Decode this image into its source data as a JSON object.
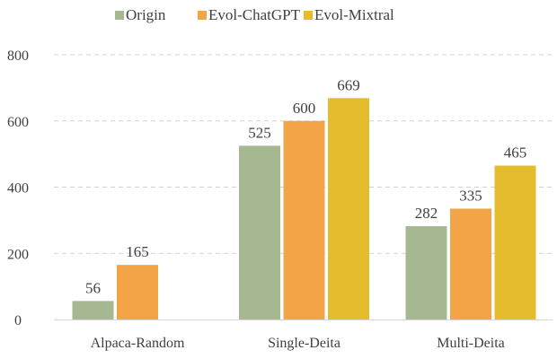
{
  "chart_data": {
    "type": "bar",
    "categories": [
      "Alpaca-Random",
      "Single-Deita",
      "Multi-Deita"
    ],
    "series": [
      {
        "name": "Origin",
        "color": "#a6b891",
        "values": [
          56,
          525,
          282
        ]
      },
      {
        "name": "Evol-ChatGPT",
        "color": "#f2a447",
        "values": [
          165,
          600,
          335
        ]
      },
      {
        "name": "Evol-Mixtral",
        "color": "#e6bc2f",
        "values": [
          null,
          669,
          465
        ]
      }
    ],
    "ylim": [
      0,
      800
    ],
    "yticks": [
      0,
      200,
      400,
      600,
      800
    ],
    "grid": true,
    "legend": "top",
    "data_labels": true
  }
}
